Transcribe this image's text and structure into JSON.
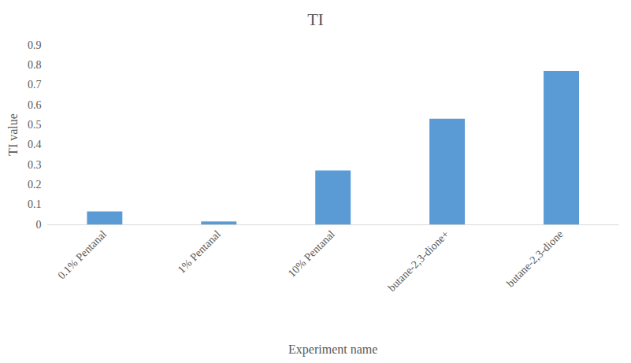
{
  "chart_data": {
    "type": "bar",
    "title": "TI",
    "x_label": "Experiment name",
    "y_label": "TI value",
    "categories": [
      "0.1% Pentanal",
      "1% Pentanal",
      "10% Pentanal",
      "butane-2,3-dione+",
      "butane-2,3-dione"
    ],
    "values": [
      0.065,
      0.015,
      0.27,
      0.53,
      0.77
    ],
    "color": "#5b9bd5",
    "ylim": [
      0,
      0.9
    ],
    "yticks": [
      0,
      0.1,
      0.2,
      0.3,
      0.4,
      0.5,
      0.6,
      0.7,
      0.8,
      0.9
    ],
    "grid": false
  }
}
